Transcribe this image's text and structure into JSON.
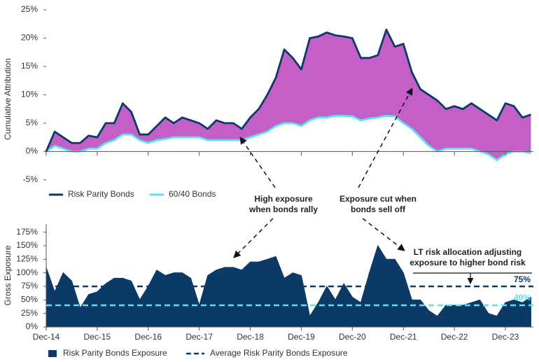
{
  "chart_data": [
    {
      "type": "line",
      "ylabel": "Cumulative Attribution",
      "ylim": [
        -7,
        25.5
      ],
      "yticks": [
        {
          "value": -5,
          "label": "-5%"
        },
        {
          "value": 0,
          "label": "0%"
        },
        {
          "value": 5,
          "label": "5%"
        },
        {
          "value": 10,
          "label": "10%"
        },
        {
          "value": 15,
          "label": "15%"
        },
        {
          "value": 20,
          "label": "20%"
        },
        {
          "value": 25,
          "label": "25%"
        }
      ],
      "fill_between_color": "#c45fc8",
      "series": [
        {
          "name": "Risk Parity Bonds",
          "color": "#0b3a66",
          "values": [
            0,
            3.5,
            2.5,
            1.5,
            1.5,
            2.8,
            2.5,
            5,
            5,
            8.5,
            7,
            3,
            3,
            4.5,
            6,
            5,
            6,
            5.5,
            5,
            4,
            5.5,
            5,
            5,
            4,
            6,
            7.5,
            10,
            13,
            18,
            16.5,
            14.5,
            20,
            20.3,
            21,
            20.5,
            20.3,
            20,
            16.5,
            16.5,
            17,
            21.5,
            18.5,
            19,
            14,
            11,
            10,
            9,
            7.5,
            8,
            7.5,
            8.5,
            7.5,
            6.5,
            5.5,
            8.5,
            8,
            6,
            6.5
          ]
        },
        {
          "name": "60/40 Bonds",
          "color": "#5ee0ee",
          "values": [
            0,
            1,
            0.5,
            0,
            0,
            0.5,
            0.5,
            1.5,
            2,
            3,
            3,
            2,
            1.5,
            2,
            2.2,
            2.5,
            2.5,
            2.5,
            2.5,
            2,
            2,
            2,
            2,
            2,
            2.5,
            3,
            3.5,
            4.5,
            5,
            5,
            4.5,
            5.5,
            6,
            6,
            6.3,
            6.3,
            6.2,
            5.5,
            5.8,
            6,
            6.3,
            6.2,
            5,
            4,
            2.5,
            1,
            0,
            0.5,
            0.5,
            0.5,
            0.5,
            0,
            -0.5,
            -1.5,
            -0.5,
            0,
            0,
            -0.3
          ]
        }
      ]
    },
    {
      "type": "area",
      "ylabel": "Gross Exposure",
      "categories": [
        "Dec-14",
        null,
        null,
        null,
        null,
        null,
        "Dec-15",
        null,
        null,
        null,
        null,
        null,
        "Dec-16",
        null,
        null,
        null,
        null,
        null,
        "Dec-17",
        null,
        null,
        null,
        null,
        null,
        "Dec-18",
        null,
        null,
        null,
        null,
        null,
        "Dec-19",
        null,
        null,
        null,
        null,
        null,
        "Dec-20",
        null,
        null,
        null,
        null,
        null,
        "Dec-21",
        null,
        null,
        null,
        null,
        null,
        "Dec-22",
        null,
        null,
        null,
        null,
        null,
        "Dec-23",
        null,
        null,
        null
      ],
      "ylim": [
        0,
        190
      ],
      "yticks": [
        {
          "value": 0,
          "label": "0%"
        },
        {
          "value": 25,
          "label": "25%"
        },
        {
          "value": 50,
          "label": "50%"
        },
        {
          "value": 75,
          "label": "75%"
        },
        {
          "value": 100,
          "label": "100%"
        },
        {
          "value": 125,
          "label": "125%"
        },
        {
          "value": 150,
          "label": "150%"
        },
        {
          "value": 175,
          "label": "175%"
        }
      ],
      "series": [
        {
          "name": "Risk Parity Bonds Exposure",
          "color": "#0b3a66",
          "values": [
            110,
            65,
            100,
            85,
            35,
            60,
            65,
            80,
            90,
            90,
            85,
            50,
            75,
            105,
            95,
            100,
            100,
            90,
            40,
            95,
            105,
            110,
            110,
            105,
            120,
            120,
            125,
            130,
            90,
            100,
            95,
            20,
            45,
            75,
            50,
            80,
            55,
            45,
            100,
            150,
            125,
            125,
            100,
            50,
            50,
            30,
            20,
            40,
            40,
            40,
            45,
            50,
            25,
            20,
            45,
            50,
            45,
            55
          ]
        }
      ],
      "reference_lines": [
        {
          "name": "Average Risk Parity Bonds Exposure",
          "value": 75,
          "label": "75%",
          "color": "#0b3a66"
        },
        {
          "value": 40,
          "label": "40%",
          "color": "#5ee0ee"
        }
      ]
    }
  ],
  "annotations": [
    {
      "lines": [
        "High exposure",
        "when bonds rally"
      ]
    },
    {
      "lines": [
        "Exposure cut when",
        "bonds sell off"
      ]
    },
    {
      "lines": [
        "LT risk allocation adjusting",
        "exposure to higher bond risk"
      ]
    }
  ]
}
